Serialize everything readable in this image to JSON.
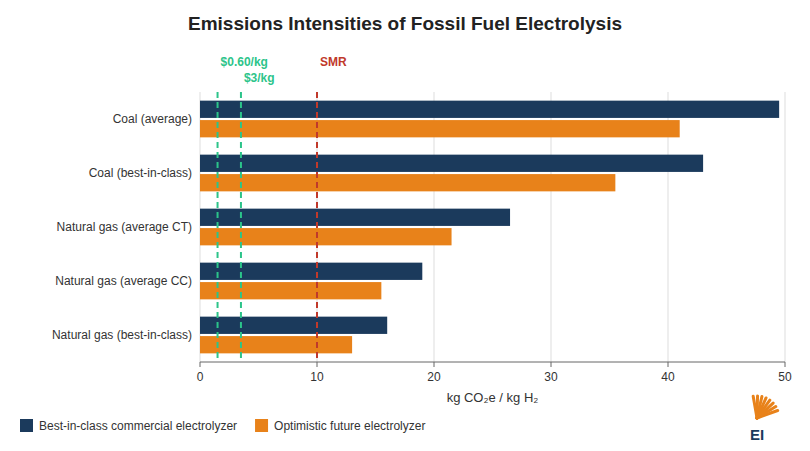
{
  "chart_data": {
    "type": "bar",
    "orientation": "horizontal",
    "title": "Emissions Intensities of Fossil Fuel Electrolysis",
    "x_label": "kg CO₂e / kg H₂",
    "categories": [
      "Coal (average)",
      "Coal (best-in-class)",
      "Natural gas (average CT)",
      "Natural gas (average CC)",
      "Natural gas (best-in-class)"
    ],
    "series": [
      {
        "name": "Best-in-class commercial electrolyzer",
        "color": "#1B3A5C",
        "values": [
          49.5,
          43.0,
          26.5,
          19.0,
          16.0
        ]
      },
      {
        "name": "Optimistic future electrolyzer",
        "color": "#E8821A",
        "values": [
          41.0,
          35.5,
          21.5,
          15.5,
          13.0
        ]
      }
    ],
    "xlim": [
      0,
      50
    ],
    "xticks": [
      0,
      10,
      20,
      30,
      40,
      50
    ],
    "grid": true,
    "legend": "lower left",
    "annotations": [
      {
        "x": 1.5,
        "text": "$0.60/kg",
        "color": "#2CC48A",
        "line_style": "dashed"
      },
      {
        "x": 3.5,
        "text": "$3/kg",
        "color": "#2CC48A",
        "line_style": "dashed"
      },
      {
        "x": 10.0,
        "text": "SMR",
        "color": "#C0392B",
        "line_style": "dashed"
      },
      {
        "text": "EI",
        "color": "#1B3A5C"
      }
    ]
  }
}
